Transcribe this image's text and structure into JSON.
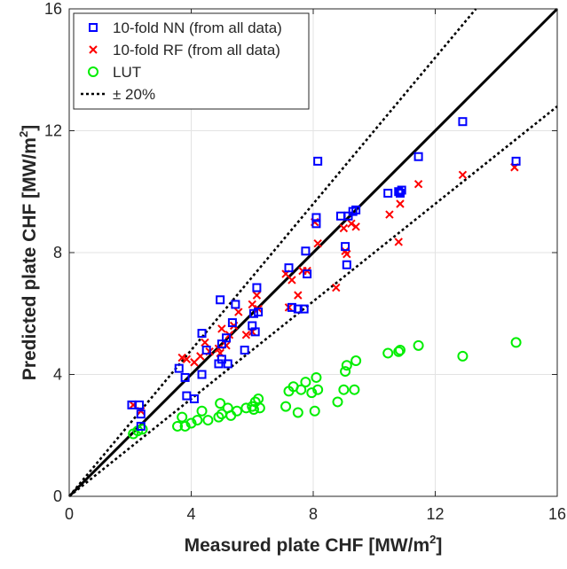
{
  "chart_data": {
    "type": "scatter",
    "xlabel": "Measured plate CHF [MW/m",
    "xlabel_sup": "2",
    "xlabel_end": "]",
    "ylabel": "Predicted plate CHF [MW/m",
    "ylabel_sup": "2",
    "ylabel_end": "]",
    "xlim": [
      0,
      16
    ],
    "ylim": [
      0,
      16
    ],
    "xticks": [
      0,
      4,
      8,
      12,
      16
    ],
    "yticks": [
      0,
      4,
      8,
      12,
      16
    ],
    "xtick_labels": [
      "0",
      "4",
      "8",
      "12",
      "16"
    ],
    "ytick_labels": [
      "0",
      "4",
      "8",
      "12",
      "16"
    ],
    "grid": true,
    "legend_position": "top-left",
    "series": [
      {
        "name": "10-fold NN (from all data)",
        "marker": "square",
        "color": "#0000ff",
        "points": [
          [
            2.05,
            3.0
          ],
          [
            2.3,
            3.0
          ],
          [
            2.35,
            2.7
          ],
          [
            2.35,
            2.3
          ],
          [
            3.6,
            4.2
          ],
          [
            3.8,
            3.9
          ],
          [
            3.85,
            3.3
          ],
          [
            4.1,
            3.2
          ],
          [
            4.35,
            5.35
          ],
          [
            4.35,
            4.0
          ],
          [
            4.5,
            4.8
          ],
          [
            4.9,
            4.35
          ],
          [
            4.95,
            6.45
          ],
          [
            5.0,
            5.0
          ],
          [
            5.0,
            4.5
          ],
          [
            5.15,
            5.2
          ],
          [
            5.2,
            4.35
          ],
          [
            5.35,
            5.7
          ],
          [
            5.45,
            6.3
          ],
          [
            5.75,
            4.8
          ],
          [
            6.0,
            5.6
          ],
          [
            6.05,
            6.0
          ],
          [
            6.1,
            5.4
          ],
          [
            6.15,
            6.85
          ],
          [
            6.2,
            6.05
          ],
          [
            7.2,
            7.5
          ],
          [
            7.3,
            6.2
          ],
          [
            7.5,
            6.15
          ],
          [
            7.7,
            6.15
          ],
          [
            7.75,
            8.05
          ],
          [
            7.8,
            7.3
          ],
          [
            8.1,
            8.95
          ],
          [
            8.1,
            9.15
          ],
          [
            8.15,
            11.0
          ],
          [
            8.9,
            9.2
          ],
          [
            9.05,
            8.2
          ],
          [
            9.1,
            7.6
          ],
          [
            9.15,
            9.2
          ],
          [
            9.3,
            9.35
          ],
          [
            9.4,
            9.4
          ],
          [
            10.45,
            9.95
          ],
          [
            10.8,
            10.0
          ],
          [
            10.85,
            9.95
          ],
          [
            10.9,
            10.05
          ],
          [
            11.45,
            11.15
          ],
          [
            12.9,
            12.3
          ],
          [
            14.65,
            11.0
          ]
        ]
      },
      {
        "name": "10-fold RF (from all data)",
        "marker": "x",
        "color": "#ff0000",
        "points": [
          [
            2.1,
            3.0
          ],
          [
            2.35,
            2.8
          ],
          [
            3.7,
            4.55
          ],
          [
            3.85,
            4.5
          ],
          [
            4.1,
            4.4
          ],
          [
            4.3,
            4.6
          ],
          [
            4.45,
            5.05
          ],
          [
            4.6,
            4.75
          ],
          [
            4.9,
            4.85
          ],
          [
            4.95,
            4.7
          ],
          [
            5.0,
            5.5
          ],
          [
            5.15,
            4.95
          ],
          [
            5.25,
            5.3
          ],
          [
            5.4,
            5.6
          ],
          [
            5.55,
            6.05
          ],
          [
            5.8,
            5.3
          ],
          [
            6.0,
            5.4
          ],
          [
            6.0,
            6.3
          ],
          [
            6.15,
            6.6
          ],
          [
            6.2,
            6.15
          ],
          [
            7.1,
            7.3
          ],
          [
            7.2,
            6.2
          ],
          [
            7.3,
            7.1
          ],
          [
            7.5,
            6.6
          ],
          [
            7.65,
            7.4
          ],
          [
            7.8,
            7.4
          ],
          [
            8.05,
            9.0
          ],
          [
            8.15,
            8.3
          ],
          [
            8.75,
            6.85
          ],
          [
            9.0,
            8.8
          ],
          [
            9.05,
            8.05
          ],
          [
            9.1,
            7.95
          ],
          [
            9.25,
            8.95
          ],
          [
            9.4,
            8.85
          ],
          [
            10.5,
            9.25
          ],
          [
            10.8,
            8.35
          ],
          [
            10.85,
            9.6
          ],
          [
            11.45,
            10.25
          ],
          [
            12.9,
            10.55
          ],
          [
            14.6,
            10.8
          ]
        ]
      },
      {
        "name": "LUT",
        "marker": "circle",
        "color": "#00ee00",
        "points": [
          [
            2.1,
            2.05
          ],
          [
            2.25,
            2.15
          ],
          [
            2.4,
            2.2
          ],
          [
            3.55,
            2.3
          ],
          [
            3.7,
            2.6
          ],
          [
            3.8,
            2.3
          ],
          [
            4.0,
            2.4
          ],
          [
            4.2,
            2.5
          ],
          [
            4.35,
            2.8
          ],
          [
            4.55,
            2.5
          ],
          [
            4.9,
            2.6
          ],
          [
            4.95,
            3.05
          ],
          [
            5.0,
            2.7
          ],
          [
            5.2,
            2.9
          ],
          [
            5.3,
            2.65
          ],
          [
            5.5,
            2.8
          ],
          [
            5.8,
            2.9
          ],
          [
            6.0,
            2.95
          ],
          [
            6.05,
            2.85
          ],
          [
            6.1,
            3.1
          ],
          [
            6.2,
            3.2
          ],
          [
            6.25,
            2.9
          ],
          [
            7.1,
            2.95
          ],
          [
            7.2,
            3.45
          ],
          [
            7.35,
            3.6
          ],
          [
            7.5,
            2.75
          ],
          [
            7.6,
            3.5
          ],
          [
            7.75,
            3.75
          ],
          [
            7.95,
            3.4
          ],
          [
            8.05,
            2.8
          ],
          [
            8.1,
            3.9
          ],
          [
            8.15,
            3.5
          ],
          [
            8.8,
            3.1
          ],
          [
            9.0,
            3.5
          ],
          [
            9.05,
            4.1
          ],
          [
            9.1,
            4.3
          ],
          [
            9.35,
            3.5
          ],
          [
            9.4,
            4.45
          ],
          [
            10.45,
            4.7
          ],
          [
            10.8,
            4.75
          ],
          [
            10.85,
            4.8
          ],
          [
            11.45,
            4.95
          ],
          [
            12.9,
            4.6
          ],
          [
            14.65,
            5.05
          ]
        ]
      }
    ],
    "reference_lines": [
      {
        "name": "± 20%",
        "style": "dotted",
        "color": "#000000",
        "slopes": [
          1.2,
          0.8
        ]
      },
      {
        "name": "",
        "style": "solid",
        "color": "#000000",
        "slopes": [
          1.0
        ]
      }
    ]
  }
}
